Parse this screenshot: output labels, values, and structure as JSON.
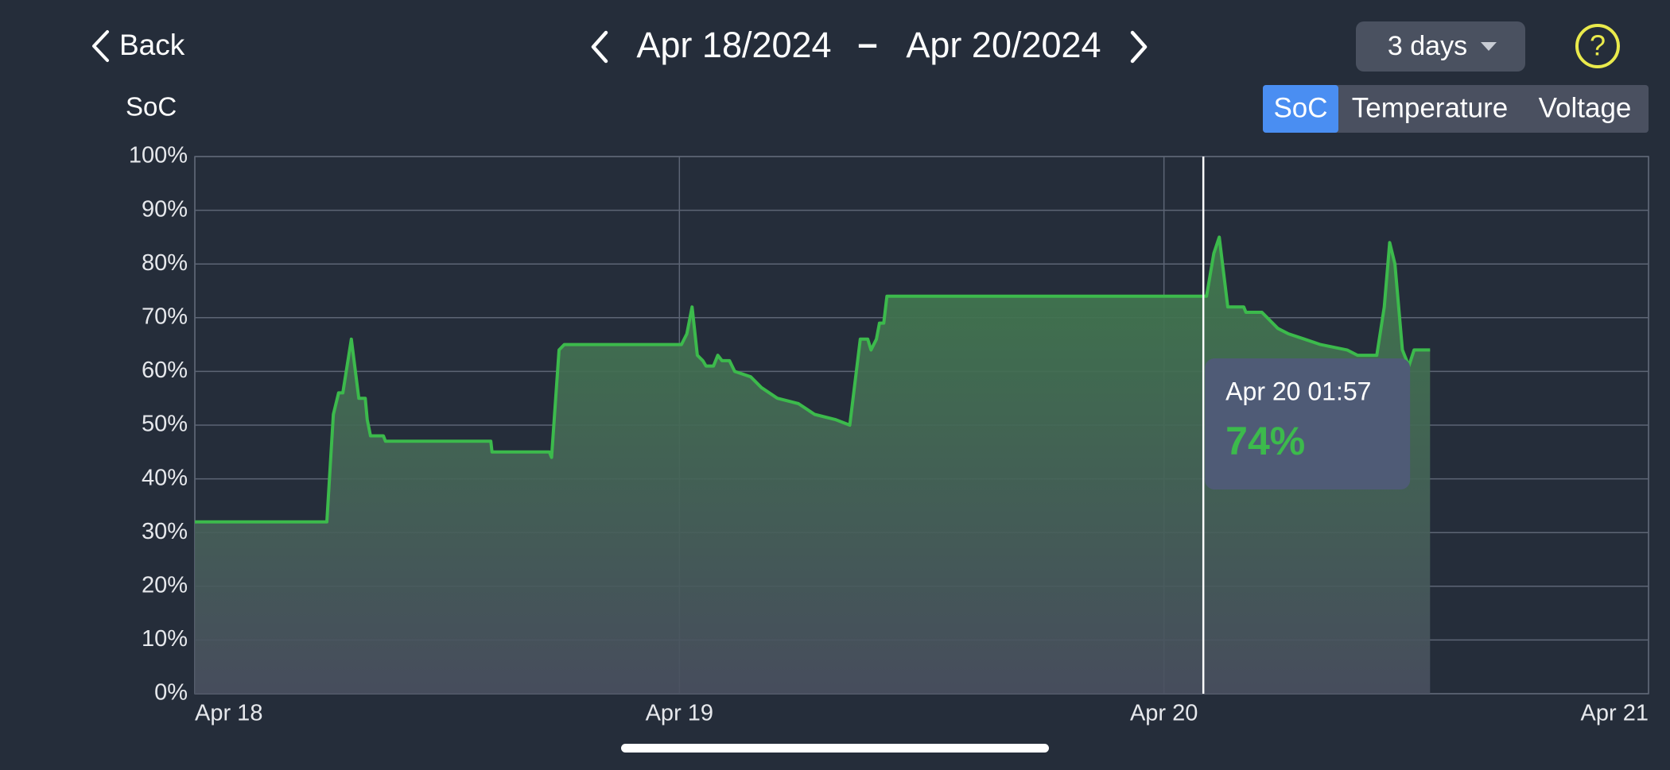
{
  "header": {
    "back": "Back",
    "start_date": "Apr 18/2024",
    "separator": "–",
    "end_date": "Apr 20/2024",
    "range": "3 days",
    "help": "?",
    "tabs": [
      "SoC",
      "Temperature",
      "Voltage"
    ],
    "active_tab": 0
  },
  "chart_data": {
    "type": "line",
    "y_label": "SoC",
    "color": "#3cba4c",
    "grid": true,
    "xlim": [
      0,
      72
    ],
    "xticks": [
      {
        "value": 0,
        "label": "Apr 18"
      },
      {
        "value": 24,
        "label": "Apr 19"
      },
      {
        "value": 48,
        "label": "Apr 20"
      },
      {
        "value": 72,
        "label": "Apr 21"
      }
    ],
    "ylim": [
      0,
      100
    ],
    "yticks": [
      {
        "value": 0,
        "label": "0%"
      },
      {
        "value": 10,
        "label": "10%"
      },
      {
        "value": 20,
        "label": "20%"
      },
      {
        "value": 30,
        "label": "30%"
      },
      {
        "value": 40,
        "label": "40%"
      },
      {
        "value": 50,
        "label": "50%"
      },
      {
        "value": 60,
        "label": "60%"
      },
      {
        "value": 70,
        "label": "70%"
      },
      {
        "value": 80,
        "label": "80%"
      },
      {
        "value": 90,
        "label": "90%"
      },
      {
        "value": 100,
        "label": "100%"
      }
    ],
    "x": [
      0,
      6.54,
      6.86,
      7.12,
      7.33,
      7.75,
      8.12,
      8.44,
      8.54,
      8.7,
      9.34,
      9.44,
      14.66,
      14.72,
      17.56,
      17.67,
      18.04,
      18.3,
      24.1,
      24.37,
      24.63,
      24.89,
      25.16,
      25.32,
      25.69,
      25.9,
      26.11,
      26.48,
      26.74,
      27.53,
      28.06,
      28.85,
      29.9,
      30.7,
      31.75,
      32.44,
      32.96,
      33.33,
      33.49,
      33.76,
      33.91,
      34.12,
      34.28,
      50.11,
      50.47,
      50.74,
      51.16,
      51.95,
      52.06,
      52.85,
      53.38,
      53.64,
      54.17,
      54.96,
      55.75,
      57.07,
      57.59,
      58.54,
      58.91,
      59.18,
      59.44,
      59.81,
      60.13,
      60.39,
      61.18
    ],
    "values": [
      32,
      32,
      52,
      56,
      56,
      66,
      55,
      55,
      51,
      48,
      48,
      47,
      47,
      45,
      45,
      44,
      64,
      65,
      65,
      67,
      72,
      63,
      62,
      61,
      61,
      63,
      62,
      62,
      60,
      59,
      57,
      55,
      54,
      52,
      51,
      50,
      66,
      66,
      64,
      66,
      69,
      69,
      74,
      74,
      82,
      85,
      72,
      72,
      71,
      71,
      69,
      68,
      67,
      66,
      65,
      64,
      63,
      63,
      72,
      84,
      80,
      64,
      61,
      64,
      64
    ],
    "tooltip": {
      "x": 49.95,
      "time": "Apr 20 01:57",
      "value": 74,
      "value_label": "74%"
    }
  }
}
